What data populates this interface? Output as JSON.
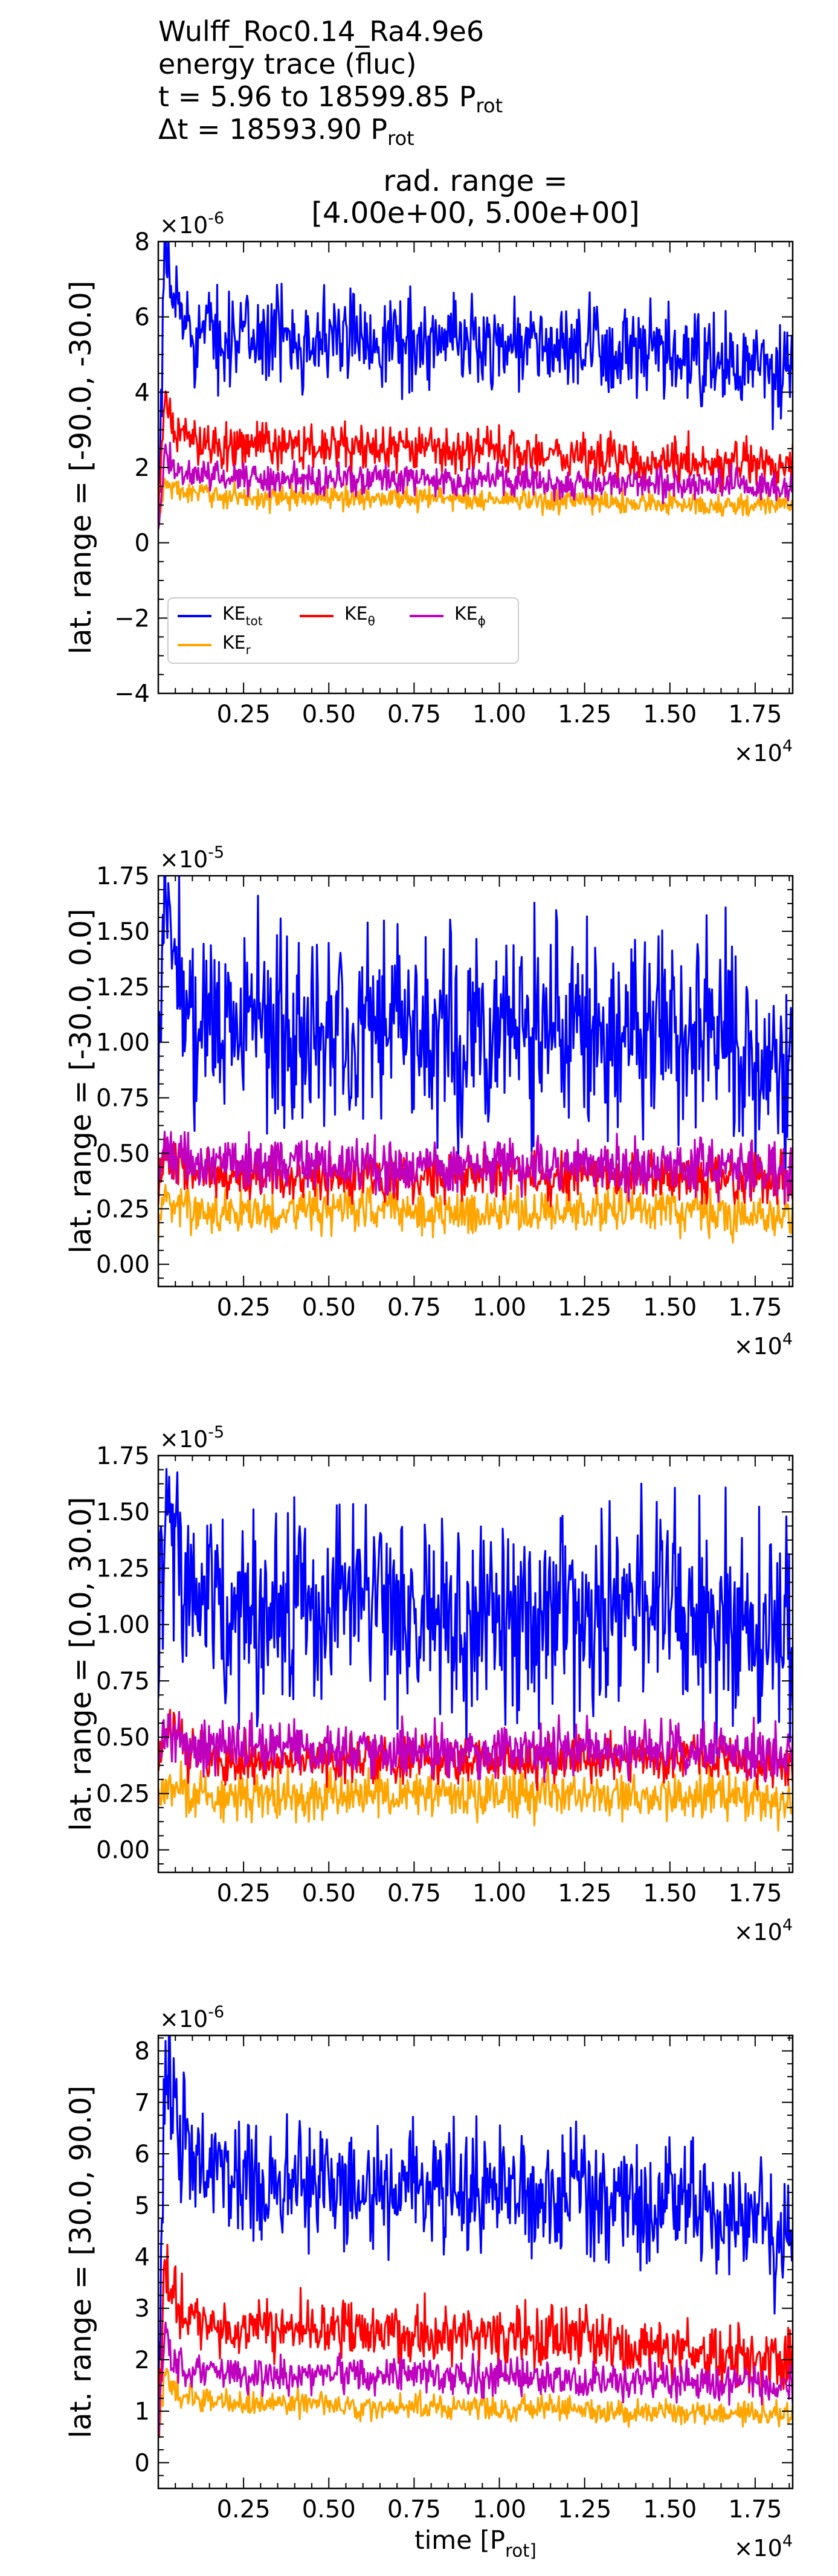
{
  "header": {
    "run_name": "Wulff_Roc0.14_Ra4.9e6",
    "trace_label": "energy trace (fluc)",
    "time_prefix": "t = 5.96 to 18599.85 P",
    "time_sub": "rot",
    "dt_prefix": "Δt = 18593.90 P",
    "dt_sub": "rot"
  },
  "rad_range": {
    "line1": "rad. range =",
    "line2": "[4.00e+00, 5.00e+00]"
  },
  "colors": {
    "KE_tot": "#0000ff",
    "KE_r": "#ffa500",
    "KE_theta": "#ff0000",
    "KE_phi": "#bf00bf"
  },
  "chart_data": [
    {
      "type": "line",
      "ylabel": "lat. range = [-90.0, -30.0]",
      "xlabel": "",
      "x_offset_text": "×10^4",
      "y_offset_text": "×10^-6",
      "xlim": [
        0,
        18600
      ],
      "ylim": [
        -4,
        8
      ],
      "xticks": [
        "0.25",
        "0.50",
        "0.75",
        "1.00",
        "1.25",
        "1.50",
        "1.75"
      ],
      "yticks": [
        "−4",
        "−2",
        "0",
        "2",
        "4",
        "6",
        "8"
      ],
      "legend": {
        "placement": "lower-left",
        "entries": [
          "KE_tot",
          "KE_r",
          "KE_θ",
          "KE_ϕ"
        ]
      },
      "series": [
        {
          "name": "KE_tot",
          "color": "#0000ff",
          "x": [
            0,
            200,
            500,
            1000,
            2000,
            3000,
            4000,
            5000,
            6000,
            7000,
            8000,
            9000,
            10000,
            11000,
            12000,
            13000,
            14000,
            15000,
            16000,
            17000,
            18000,
            18600
          ],
          "values": [
            0.5,
            7.6,
            6.4,
            5.6,
            5.5,
            5.5,
            5.5,
            5.4,
            5.5,
            5.4,
            5.3,
            5.4,
            5.3,
            5.3,
            5.1,
            5.1,
            5.0,
            4.9,
            4.8,
            4.7,
            4.5,
            4.6
          ],
          "noise": 0.6
        },
        {
          "name": "KE_r",
          "color": "#ffa500",
          "x": [
            0,
            200,
            500,
            1000,
            2000,
            3000,
            4000,
            5000,
            6000,
            7000,
            8000,
            9000,
            10000,
            11000,
            12000,
            13000,
            14000,
            15000,
            16000,
            17000,
            18000,
            18600
          ],
          "values": [
            0.5,
            1.6,
            1.4,
            1.3,
            1.25,
            1.2,
            1.2,
            1.2,
            1.2,
            1.2,
            1.2,
            1.15,
            1.15,
            1.1,
            1.1,
            1.1,
            1.05,
            1.05,
            1.0,
            1.0,
            1.0,
            1.0
          ],
          "noise": 0.15
        },
        {
          "name": "KE_θ",
          "color": "#ff0000",
          "x": [
            0,
            200,
            500,
            1000,
            2000,
            3000,
            4000,
            5000,
            6000,
            7000,
            8000,
            9000,
            10000,
            11000,
            12000,
            13000,
            14000,
            15000,
            16000,
            17000,
            18000,
            18600
          ],
          "values": [
            0.5,
            3.8,
            3.0,
            2.7,
            2.6,
            2.6,
            2.6,
            2.5,
            2.5,
            2.5,
            2.5,
            2.4,
            2.4,
            2.4,
            2.3,
            2.3,
            2.2,
            2.2,
            2.1,
            2.1,
            2.0,
            2.0
          ],
          "noise": 0.3
        },
        {
          "name": "KE_ϕ",
          "color": "#bf00bf",
          "x": [
            0,
            200,
            500,
            1000,
            2000,
            3000,
            4000,
            5000,
            6000,
            7000,
            8000,
            9000,
            10000,
            11000,
            12000,
            13000,
            14000,
            15000,
            16000,
            17000,
            18000,
            18600
          ],
          "values": [
            0.5,
            2.3,
            2.0,
            1.8,
            1.75,
            1.7,
            1.7,
            1.7,
            1.7,
            1.7,
            1.7,
            1.65,
            1.65,
            1.65,
            1.6,
            1.6,
            1.6,
            1.6,
            1.55,
            1.55,
            1.5,
            1.5
          ],
          "noise": 0.2
        }
      ]
    },
    {
      "type": "line",
      "ylabel": "lat. range = [-30.0, 0.0]",
      "xlabel": "",
      "x_offset_text": "×10^4",
      "y_offset_text": "×10^-5",
      "xlim": [
        0,
        18600
      ],
      "ylim": [
        -0.1,
        1.75
      ],
      "xticks": [
        "0.25",
        "0.50",
        "0.75",
        "1.00",
        "1.25",
        "1.50",
        "1.75"
      ],
      "yticks": [
        "0.00",
        "0.25",
        "0.50",
        "0.75",
        "1.00",
        "1.25",
        "1.50",
        "1.75"
      ],
      "series": [
        {
          "name": "KE_tot",
          "color": "#0000ff",
          "x": [
            0,
            200,
            1000,
            2000,
            4000,
            6000,
            8000,
            10000,
            12000,
            14000,
            16000,
            18000,
            18600
          ],
          "values": [
            0.9,
            1.6,
            1.1,
            1.1,
            1.05,
            1.1,
            1.05,
            1.05,
            1.1,
            1.05,
            1.1,
            0.95,
            0.95
          ],
          "noise": 0.22
        },
        {
          "name": "KE_r",
          "color": "#ffa500",
          "x": [
            0,
            200,
            1000,
            2000,
            4000,
            6000,
            8000,
            10000,
            12000,
            14000,
            16000,
            18000,
            18600
          ],
          "values": [
            0.2,
            0.3,
            0.24,
            0.24,
            0.24,
            0.25,
            0.24,
            0.24,
            0.25,
            0.24,
            0.24,
            0.22,
            0.21
          ],
          "noise": 0.05
        },
        {
          "name": "KE_θ",
          "color": "#ff0000",
          "x": [
            0,
            200,
            1000,
            2000,
            4000,
            6000,
            8000,
            10000,
            12000,
            14000,
            16000,
            18000,
            18600
          ],
          "values": [
            0.35,
            0.5,
            0.4,
            0.4,
            0.4,
            0.4,
            0.4,
            0.4,
            0.4,
            0.4,
            0.4,
            0.38,
            0.37
          ],
          "noise": 0.05
        },
        {
          "name": "KE_ϕ",
          "color": "#bf00bf",
          "x": [
            0,
            200,
            1000,
            2000,
            4000,
            6000,
            8000,
            10000,
            12000,
            14000,
            16000,
            18000,
            18600
          ],
          "values": [
            0.4,
            0.55,
            0.45,
            0.45,
            0.45,
            0.45,
            0.44,
            0.44,
            0.45,
            0.44,
            0.45,
            0.42,
            0.41
          ],
          "noise": 0.06
        }
      ]
    },
    {
      "type": "line",
      "ylabel": "lat. range = [0.0, 30.0]",
      "xlabel": "",
      "x_offset_text": "×10^4",
      "y_offset_text": "×10^-5",
      "xlim": [
        0,
        18600
      ],
      "ylim": [
        -0.1,
        1.75
      ],
      "xticks": [
        "0.25",
        "0.50",
        "0.75",
        "1.00",
        "1.25",
        "1.50",
        "1.75"
      ],
      "yticks": [
        "0.00",
        "0.25",
        "0.50",
        "0.75",
        "1.00",
        "1.25",
        "1.50",
        "1.75"
      ],
      "series": [
        {
          "name": "KE_tot",
          "color": "#0000ff",
          "x": [
            0,
            200,
            1000,
            2000,
            4000,
            6000,
            8000,
            10000,
            12000,
            14000,
            16000,
            18000,
            18600
          ],
          "values": [
            0.9,
            1.6,
            1.1,
            1.05,
            1.05,
            1.1,
            1.05,
            1.05,
            1.05,
            1.1,
            1.05,
            0.95,
            0.95
          ],
          "noise": 0.22
        },
        {
          "name": "KE_r",
          "color": "#ffa500",
          "x": [
            0,
            200,
            1000,
            2000,
            4000,
            6000,
            8000,
            10000,
            12000,
            14000,
            16000,
            18000,
            18600
          ],
          "values": [
            0.2,
            0.3,
            0.24,
            0.24,
            0.24,
            0.25,
            0.24,
            0.24,
            0.25,
            0.24,
            0.24,
            0.22,
            0.21
          ],
          "noise": 0.05
        },
        {
          "name": "KE_θ",
          "color": "#ff0000",
          "x": [
            0,
            200,
            1000,
            2000,
            4000,
            6000,
            8000,
            10000,
            12000,
            14000,
            16000,
            18000,
            18600
          ],
          "values": [
            0.35,
            0.55,
            0.4,
            0.4,
            0.4,
            0.4,
            0.4,
            0.4,
            0.4,
            0.4,
            0.4,
            0.38,
            0.37
          ],
          "noise": 0.05
        },
        {
          "name": "KE_ϕ",
          "color": "#bf00bf",
          "x": [
            0,
            200,
            1000,
            2000,
            4000,
            6000,
            8000,
            10000,
            12000,
            14000,
            16000,
            18000,
            18600
          ],
          "values": [
            0.4,
            0.55,
            0.45,
            0.45,
            0.45,
            0.45,
            0.44,
            0.44,
            0.45,
            0.44,
            0.45,
            0.42,
            0.41
          ],
          "noise": 0.06
        }
      ]
    },
    {
      "type": "line",
      "ylabel": "lat. range = [30.0, 90.0]",
      "xlabel": "time [P_rot]",
      "x_offset_text": "×10^4",
      "y_offset_text": "×10^-6",
      "xlim": [
        0,
        18600
      ],
      "ylim": [
        -0.5,
        8.3
      ],
      "xticks": [
        "0.25",
        "0.50",
        "0.75",
        "1.00",
        "1.25",
        "1.50",
        "1.75"
      ],
      "yticks": [
        "0",
        "1",
        "2",
        "3",
        "4",
        "5",
        "6",
        "7",
        "8"
      ],
      "series": [
        {
          "name": "KE_tot",
          "color": "#0000ff",
          "x": [
            0,
            200,
            500,
            1000,
            2000,
            3000,
            4000,
            5000,
            6000,
            7000,
            8000,
            9000,
            10000,
            11000,
            12000,
            13000,
            14000,
            15000,
            16000,
            17000,
            18000,
            18600
          ],
          "values": [
            0.5,
            7.9,
            6.8,
            5.8,
            5.5,
            5.5,
            5.5,
            5.5,
            5.4,
            5.4,
            5.4,
            5.4,
            5.3,
            5.3,
            5.2,
            5.2,
            5.1,
            5.0,
            4.9,
            4.8,
            4.6,
            4.6
          ],
          "noise": 0.6
        },
        {
          "name": "KE_r",
          "color": "#ffa500",
          "x": [
            0,
            200,
            500,
            1000,
            2000,
            3000,
            4000,
            5000,
            6000,
            7000,
            8000,
            9000,
            10000,
            11000,
            12000,
            13000,
            14000,
            15000,
            16000,
            17000,
            18000,
            18600
          ],
          "values": [
            0.5,
            1.8,
            1.4,
            1.25,
            1.2,
            1.15,
            1.15,
            1.15,
            1.1,
            1.1,
            1.1,
            1.1,
            1.1,
            1.05,
            1.05,
            1.0,
            1.0,
            1.0,
            0.95,
            0.95,
            0.95,
            0.9
          ],
          "noise": 0.12
        },
        {
          "name": "KE_θ",
          "color": "#ff0000",
          "x": [
            0,
            200,
            500,
            1000,
            2000,
            3000,
            4000,
            5000,
            6000,
            7000,
            8000,
            9000,
            10000,
            11000,
            12000,
            13000,
            14000,
            15000,
            16000,
            17000,
            18000,
            18600
          ],
          "values": [
            0.5,
            3.9,
            3.1,
            2.7,
            2.6,
            2.6,
            2.6,
            2.6,
            2.6,
            2.5,
            2.5,
            2.5,
            2.5,
            2.4,
            2.4,
            2.3,
            2.2,
            2.2,
            2.1,
            2.1,
            2.0,
            2.0
          ],
          "noise": 0.3
        },
        {
          "name": "KE_ϕ",
          "color": "#bf00bf",
          "x": [
            0,
            200,
            500,
            1000,
            2000,
            3000,
            4000,
            5000,
            6000,
            7000,
            8000,
            9000,
            10000,
            11000,
            12000,
            13000,
            14000,
            15000,
            16000,
            17000,
            18000,
            18600
          ],
          "values": [
            0.5,
            2.6,
            2.0,
            1.8,
            1.7,
            1.7,
            1.7,
            1.7,
            1.7,
            1.7,
            1.7,
            1.65,
            1.65,
            1.65,
            1.6,
            1.6,
            1.6,
            1.6,
            1.55,
            1.55,
            1.5,
            1.5
          ],
          "noise": 0.18
        }
      ]
    }
  ]
}
